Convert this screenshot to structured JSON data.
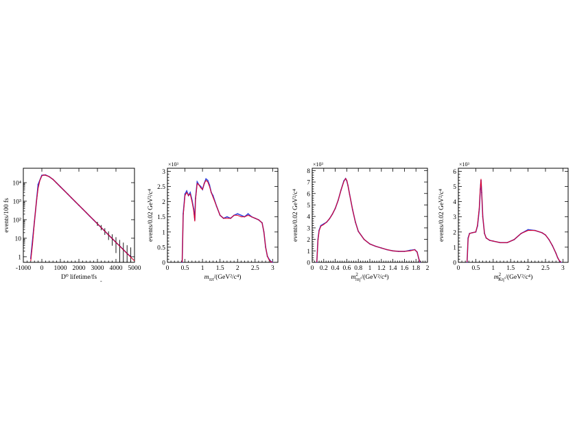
{
  "figure": {
    "stray_mark": "-"
  },
  "chart_data": [
    {
      "type": "line",
      "panel": "lifetime",
      "xlabel": "D⁰ lifetime/fs",
      "ylabel": "events/100 fs",
      "xlim": [
        -1000,
        5000
      ],
      "ylim": [
        0.5,
        60000
      ],
      "yscale": "log",
      "grid": false,
      "xticks": [
        -1000,
        0,
        1000,
        2000,
        3000,
        4000,
        5000
      ],
      "yticks": [
        1,
        10,
        100,
        1000,
        10000
      ],
      "yticklabels": [
        "1",
        "10",
        "10²",
        "10³",
        "10⁴"
      ],
      "data_series": {
        "name": "data",
        "color": "#3333cc",
        "x": [
          -600,
          -400,
          -200,
          0,
          200,
          400,
          600,
          800,
          1000,
          1200,
          1400,
          1600,
          1800,
          2000,
          2200,
          2400,
          2600,
          2800,
          3000,
          3200,
          3400,
          3600,
          3800,
          4000,
          4200,
          4400,
          4600,
          4800
        ],
        "y": [
          0.8,
          80,
          8000,
          25000,
          26000,
          21000,
          15000,
          9500,
          6000,
          3800,
          2400,
          1500,
          950,
          600,
          380,
          240,
          150,
          95,
          60,
          38,
          24,
          15,
          9.5,
          6,
          3.8,
          2.4,
          1.5,
          1
        ]
      },
      "error_bars_from": 3000,
      "fit_series": {
        "name": "fit",
        "color": "#e0002a",
        "x": [
          -600,
          -500,
          -400,
          -300,
          -200,
          -100,
          0,
          100,
          200,
          300,
          400,
          600,
          800,
          1000,
          1500,
          2000,
          2500,
          3000,
          3500,
          4000,
          4500,
          5000
        ],
        "y": [
          0.6,
          5,
          80,
          800,
          5000,
          14000,
          23000,
          26500,
          25000,
          23000,
          21000,
          15000,
          9500,
          6000,
          1900,
          600,
          190,
          60,
          19,
          6,
          1.9,
          0.6
        ]
      }
    },
    {
      "type": "line",
      "panel": "m_pipi",
      "xlabel_main": "m",
      "xlabel_sub": "ππ",
      "xlabel_unit": "/(GeV²/c⁴)",
      "ylabel": "events/0.02 GeV²/c⁴",
      "multiplier": "×10³",
      "xlim": [
        0,
        3.15
      ],
      "ylim": [
        0,
        3.1
      ],
      "grid": false,
      "xticks": [
        0,
        0.5,
        1,
        1.5,
        2,
        2.5,
        3
      ],
      "yticks": [
        0,
        0.5,
        1,
        1.5,
        2,
        2.5,
        3
      ],
      "data_series": {
        "name": "data",
        "color": "#3344dd",
        "x": [
          0.42,
          0.45,
          0.5,
          0.55,
          0.6,
          0.65,
          0.7,
          0.75,
          0.78,
          0.8,
          0.85,
          0.9,
          0.95,
          1.0,
          1.05,
          1.1,
          1.15,
          1.2,
          1.25,
          1.3,
          1.4,
          1.5,
          1.6,
          1.7,
          1.8,
          1.9,
          2.0,
          2.1,
          2.2,
          2.3,
          2.4,
          2.5,
          2.6,
          2.7,
          2.75,
          2.8,
          2.85,
          2.9,
          2.95,
          3.0
        ],
        "y": [
          0.0,
          1.6,
          2.25,
          2.35,
          2.2,
          2.3,
          2.05,
          1.75,
          1.4,
          2.1,
          2.65,
          2.55,
          2.5,
          2.4,
          2.6,
          2.75,
          2.7,
          2.55,
          2.3,
          2.2,
          1.85,
          1.55,
          1.45,
          1.5,
          1.45,
          1.55,
          1.6,
          1.55,
          1.5,
          1.6,
          1.5,
          1.45,
          1.4,
          1.3,
          1.0,
          0.5,
          0.2,
          0.1,
          0.03,
          0.0
        ]
      },
      "fit_series": {
        "name": "fit",
        "color": "#e0002a",
        "x": [
          0.42,
          0.45,
          0.5,
          0.55,
          0.6,
          0.65,
          0.7,
          0.75,
          0.78,
          0.8,
          0.85,
          0.9,
          0.95,
          1.0,
          1.05,
          1.1,
          1.15,
          1.2,
          1.25,
          1.3,
          1.4,
          1.5,
          1.6,
          1.7,
          1.8,
          1.9,
          2.0,
          2.1,
          2.2,
          2.3,
          2.4,
          2.5,
          2.6,
          2.7,
          2.75,
          2.8,
          2.85,
          2.9,
          2.95,
          3.0
        ],
        "y": [
          0.0,
          1.55,
          2.2,
          2.3,
          2.2,
          2.25,
          2.0,
          1.7,
          1.35,
          2.05,
          2.6,
          2.55,
          2.45,
          2.4,
          2.6,
          2.7,
          2.65,
          2.5,
          2.3,
          2.15,
          1.85,
          1.55,
          1.45,
          1.45,
          1.45,
          1.55,
          1.55,
          1.5,
          1.5,
          1.55,
          1.5,
          1.45,
          1.4,
          1.3,
          1.0,
          0.5,
          0.2,
          0.08,
          0.02,
          0.0
        ]
      }
    },
    {
      "type": "line",
      "panel": "m_pi_eta",
      "xlabel_main": "m",
      "xlabel_sub": "πη′",
      "xlabel_sup": "2",
      "xlabel_unit": "/(GeV²/c⁴)",
      "ylabel": "events/0.02 GeV²/c⁴",
      "multiplier": "×10³",
      "xlim": [
        0,
        2.0
      ],
      "ylim": [
        0,
        8.2
      ],
      "grid": false,
      "xticks": [
        0,
        0.2,
        0.4,
        0.6,
        0.8,
        1,
        1.2,
        1.4,
        1.6,
        1.8,
        2
      ],
      "yticks": [
        0,
        1,
        2,
        3,
        4,
        5,
        6,
        7,
        8
      ],
      "data_series": {
        "name": "data",
        "color": "#3344dd",
        "x": [
          0.08,
          0.1,
          0.12,
          0.15,
          0.2,
          0.25,
          0.3,
          0.35,
          0.4,
          0.45,
          0.5,
          0.55,
          0.58,
          0.6,
          0.62,
          0.65,
          0.7,
          0.75,
          0.8,
          0.9,
          1.0,
          1.1,
          1.2,
          1.3,
          1.4,
          1.5,
          1.6,
          1.7,
          1.78,
          1.82,
          1.85,
          1.87
        ],
        "y": [
          0.0,
          2.0,
          2.8,
          3.2,
          3.35,
          3.5,
          3.8,
          4.2,
          4.7,
          5.4,
          6.3,
          7.1,
          7.3,
          7.1,
          6.7,
          5.9,
          4.6,
          3.5,
          2.7,
          2.0,
          1.6,
          1.4,
          1.25,
          1.1,
          1.0,
          0.95,
          0.95,
          1.05,
          1.1,
          0.9,
          0.3,
          0.0
        ]
      },
      "fit_series": {
        "name": "fit",
        "color": "#e0002a",
        "x": [
          0.08,
          0.1,
          0.12,
          0.15,
          0.2,
          0.25,
          0.3,
          0.35,
          0.4,
          0.45,
          0.5,
          0.55,
          0.58,
          0.6,
          0.62,
          0.65,
          0.7,
          0.75,
          0.8,
          0.9,
          1.0,
          1.1,
          1.2,
          1.3,
          1.4,
          1.5,
          1.6,
          1.7,
          1.78,
          1.82,
          1.85,
          1.87
        ],
        "y": [
          0.0,
          1.9,
          2.75,
          3.15,
          3.3,
          3.5,
          3.8,
          4.2,
          4.7,
          5.4,
          6.3,
          7.05,
          7.3,
          7.15,
          6.7,
          5.9,
          4.6,
          3.5,
          2.7,
          2.0,
          1.6,
          1.4,
          1.25,
          1.1,
          1.0,
          0.95,
          0.95,
          1.0,
          1.1,
          0.9,
          0.3,
          0.0
        ]
      }
    },
    {
      "type": "line",
      "panel": "m_K_eta",
      "xlabel_main": "m",
      "xlabel_sub": "Kη′",
      "xlabel_sup": "2",
      "xlabel_unit": "/(GeV²/c⁴)",
      "ylabel": "events/0.02 GeV²/c⁴",
      "multiplier": "×10³",
      "xlim": [
        0,
        3.15
      ],
      "ylim": [
        0,
        6.2
      ],
      "grid": false,
      "xticks": [
        0,
        0.5,
        1,
        1.5,
        2,
        2.5,
        3
      ],
      "yticks": [
        0,
        1,
        2,
        3,
        4,
        5,
        6
      ],
      "data_series": {
        "name": "data",
        "color": "#3344dd",
        "x": [
          0.25,
          0.28,
          0.32,
          0.4,
          0.5,
          0.55,
          0.6,
          0.63,
          0.65,
          0.67,
          0.7,
          0.75,
          0.8,
          0.9,
          1.0,
          1.2,
          1.4,
          1.6,
          1.8,
          2.0,
          2.2,
          2.4,
          2.5,
          2.6,
          2.7,
          2.8,
          2.85,
          2.9,
          2.95
        ],
        "y": [
          0.0,
          1.6,
          1.9,
          1.95,
          2.0,
          2.4,
          3.5,
          4.8,
          5.4,
          4.6,
          3.0,
          1.9,
          1.6,
          1.45,
          1.4,
          1.3,
          1.3,
          1.5,
          1.9,
          2.15,
          2.1,
          1.95,
          1.8,
          1.5,
          1.1,
          0.6,
          0.3,
          0.1,
          0.0
        ]
      },
      "fit_series": {
        "name": "fit",
        "color": "#e0002a",
        "x": [
          0.25,
          0.28,
          0.32,
          0.4,
          0.5,
          0.55,
          0.6,
          0.63,
          0.65,
          0.67,
          0.7,
          0.75,
          0.8,
          0.9,
          1.0,
          1.2,
          1.4,
          1.6,
          1.8,
          2.0,
          2.2,
          2.4,
          2.5,
          2.6,
          2.7,
          2.8,
          2.85,
          2.9,
          2.95
        ],
        "y": [
          0.0,
          1.55,
          1.9,
          1.95,
          2.0,
          2.45,
          3.6,
          4.9,
          5.5,
          4.6,
          3.0,
          1.9,
          1.6,
          1.45,
          1.4,
          1.3,
          1.3,
          1.5,
          1.9,
          2.1,
          2.1,
          1.95,
          1.8,
          1.5,
          1.1,
          0.6,
          0.3,
          0.1,
          0.0
        ]
      }
    }
  ]
}
